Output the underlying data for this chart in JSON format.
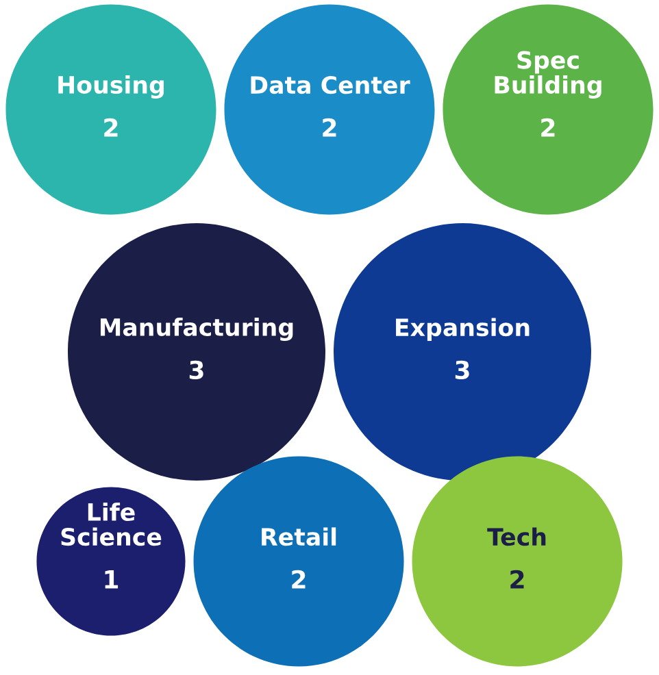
{
  "chart_data": {
    "type": "other",
    "categories": [
      "Housing",
      "Data Center",
      "Spec\nBuilding",
      "Manufacturing",
      "Expansion",
      "Life\nScience",
      "Retail",
      "Tech"
    ],
    "values": [
      2,
      2,
      2,
      3,
      3,
      1,
      2,
      2
    ],
    "colors": [
      "#2bb5ad",
      "#1a8cc8",
      "#5cb348",
      "#1b1f47",
      "#0e3a94",
      "#1c1f6e",
      "#0d6fb5",
      "#8dc63f"
    ],
    "data_labels": true
  }
}
